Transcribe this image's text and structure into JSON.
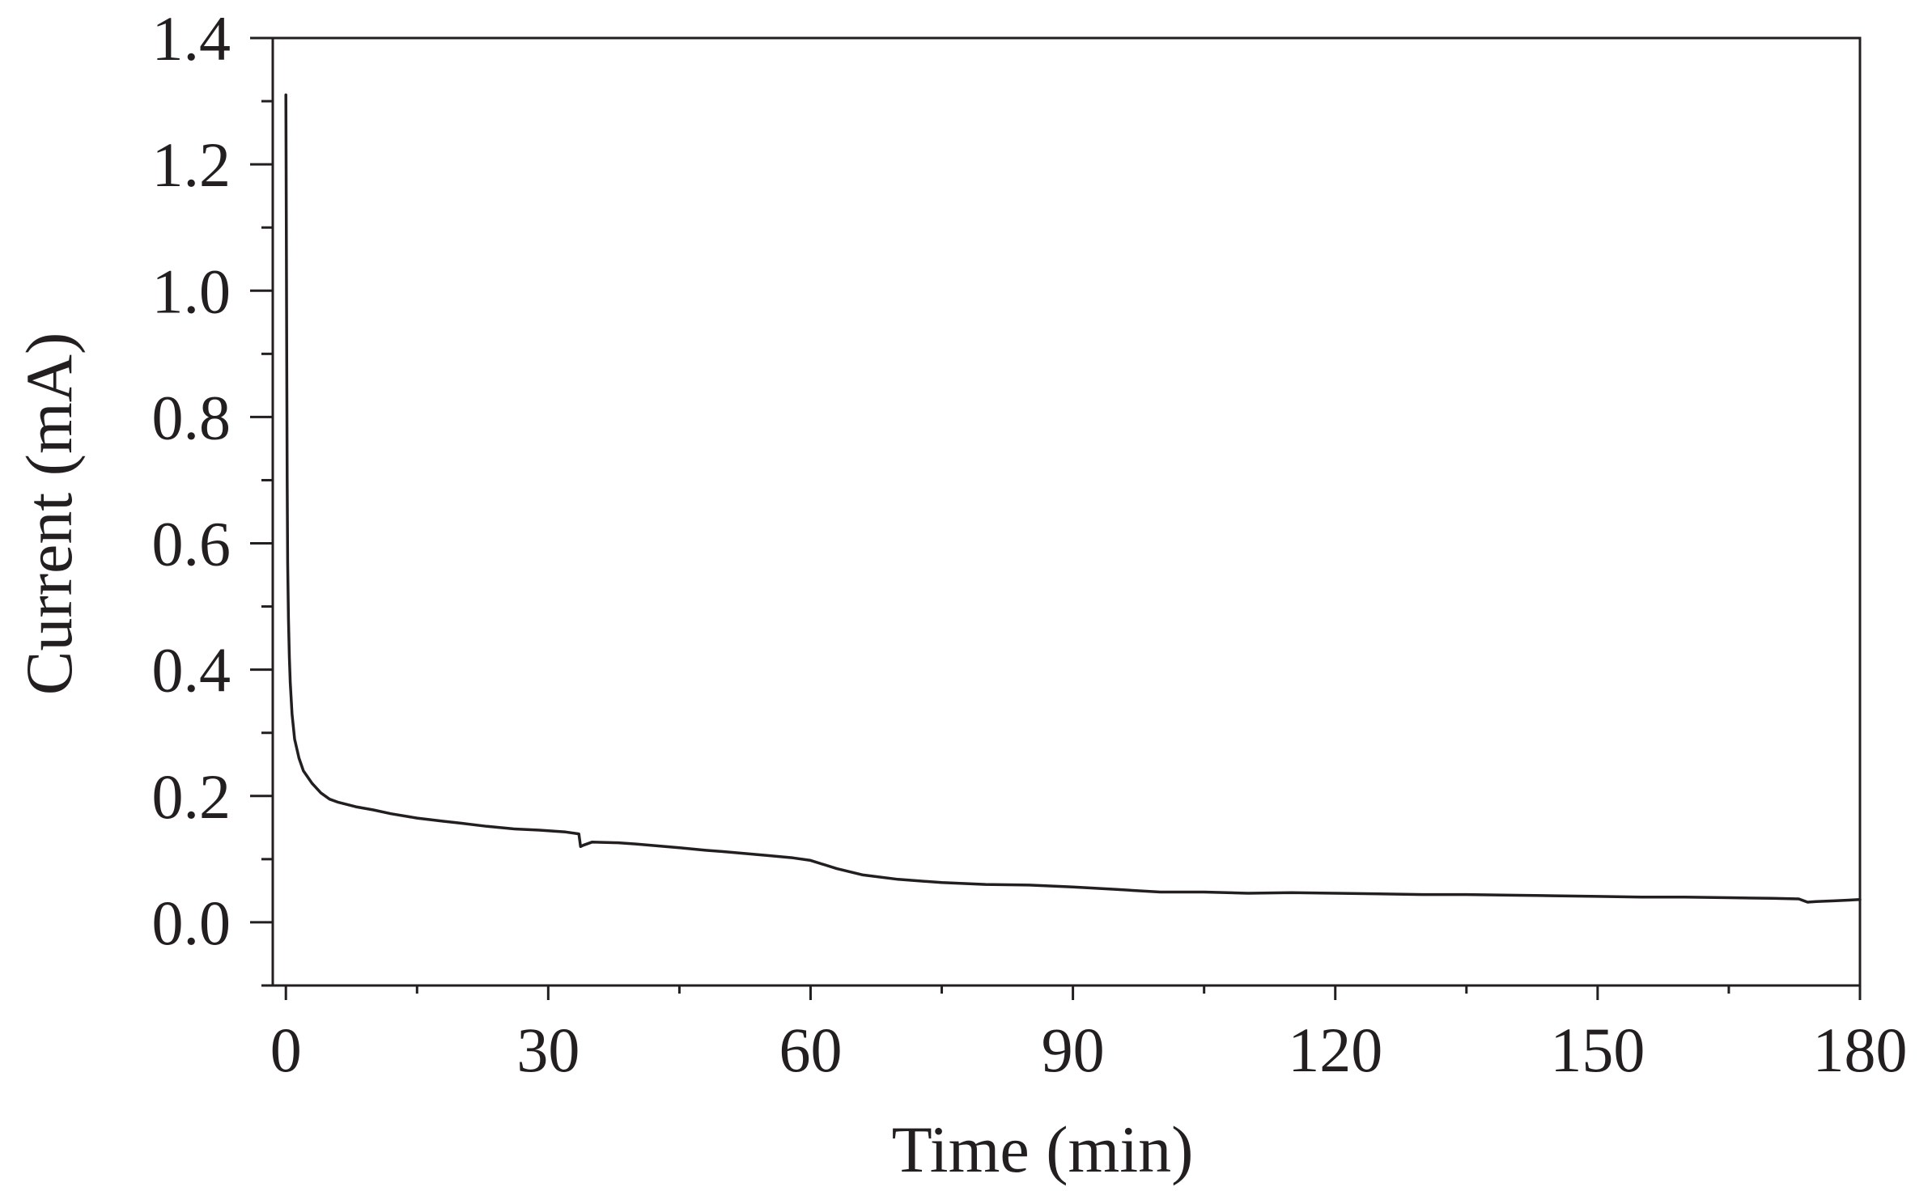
{
  "chart_data": {
    "type": "line",
    "title": "",
    "xlabel": "Time (min)",
    "ylabel": "Current (mA)",
    "xlim": [
      -1.5,
      180
    ],
    "ylim": [
      -0.1,
      1.4
    ],
    "xticks": [
      0,
      30,
      60,
      90,
      120,
      150,
      180
    ],
    "xtick_labels": [
      "0",
      "30",
      "60",
      "90",
      "120",
      "150",
      "180"
    ],
    "yticks": [
      0.0,
      0.2,
      0.4,
      0.6,
      0.8,
      1.0,
      1.2,
      1.4
    ],
    "ytick_labels": [
      "0.0",
      "0.2",
      "0.4",
      "0.6",
      "0.8",
      "1.0",
      "1.2",
      "1.4"
    ],
    "grid": false,
    "legend": "none",
    "line_color": "#231f20",
    "series": [
      {
        "x": [
          0.0,
          0.05,
          0.1,
          0.15,
          0.2,
          0.3,
          0.4,
          0.5,
          0.7,
          1.0,
          1.5,
          2.0,
          3.0,
          4.0,
          5.0,
          6.0,
          8.0,
          10.0,
          12.0,
          15.0,
          18.0,
          20.0,
          23.0,
          26.0,
          29.0,
          32.0,
          33.5,
          33.7,
          34.0,
          35.0,
          38.0,
          40.0,
          45.0,
          48.0,
          50.0,
          55.0,
          58.0,
          60.0,
          63.0,
          66.0,
          70.0,
          75.0,
          80.0,
          85.0,
          90.0,
          95.0,
          100.0,
          105.0,
          110.0,
          115.0,
          120.0,
          125.0,
          130.0,
          135.0,
          140.0,
          145.0,
          150.0,
          155.0,
          160.0,
          165.0,
          170.0,
          173.0,
          174.0,
          175.0,
          177.0,
          180.0
        ],
        "y": [
          1.31,
          1.12,
          0.88,
          0.7,
          0.57,
          0.48,
          0.42,
          0.38,
          0.33,
          0.29,
          0.26,
          0.24,
          0.22,
          0.205,
          0.195,
          0.19,
          0.183,
          0.178,
          0.172,
          0.165,
          0.16,
          0.157,
          0.152,
          0.148,
          0.146,
          0.143,
          0.14,
          0.12,
          0.122,
          0.127,
          0.126,
          0.124,
          0.118,
          0.114,
          0.112,
          0.106,
          0.102,
          0.098,
          0.085,
          0.075,
          0.068,
          0.063,
          0.06,
          0.059,
          0.056,
          0.052,
          0.048,
          0.048,
          0.046,
          0.047,
          0.046,
          0.045,
          0.044,
          0.044,
          0.043,
          0.042,
          0.041,
          0.04,
          0.04,
          0.039,
          0.038,
          0.037,
          0.032,
          0.033,
          0.034,
          0.036
        ]
      }
    ]
  }
}
